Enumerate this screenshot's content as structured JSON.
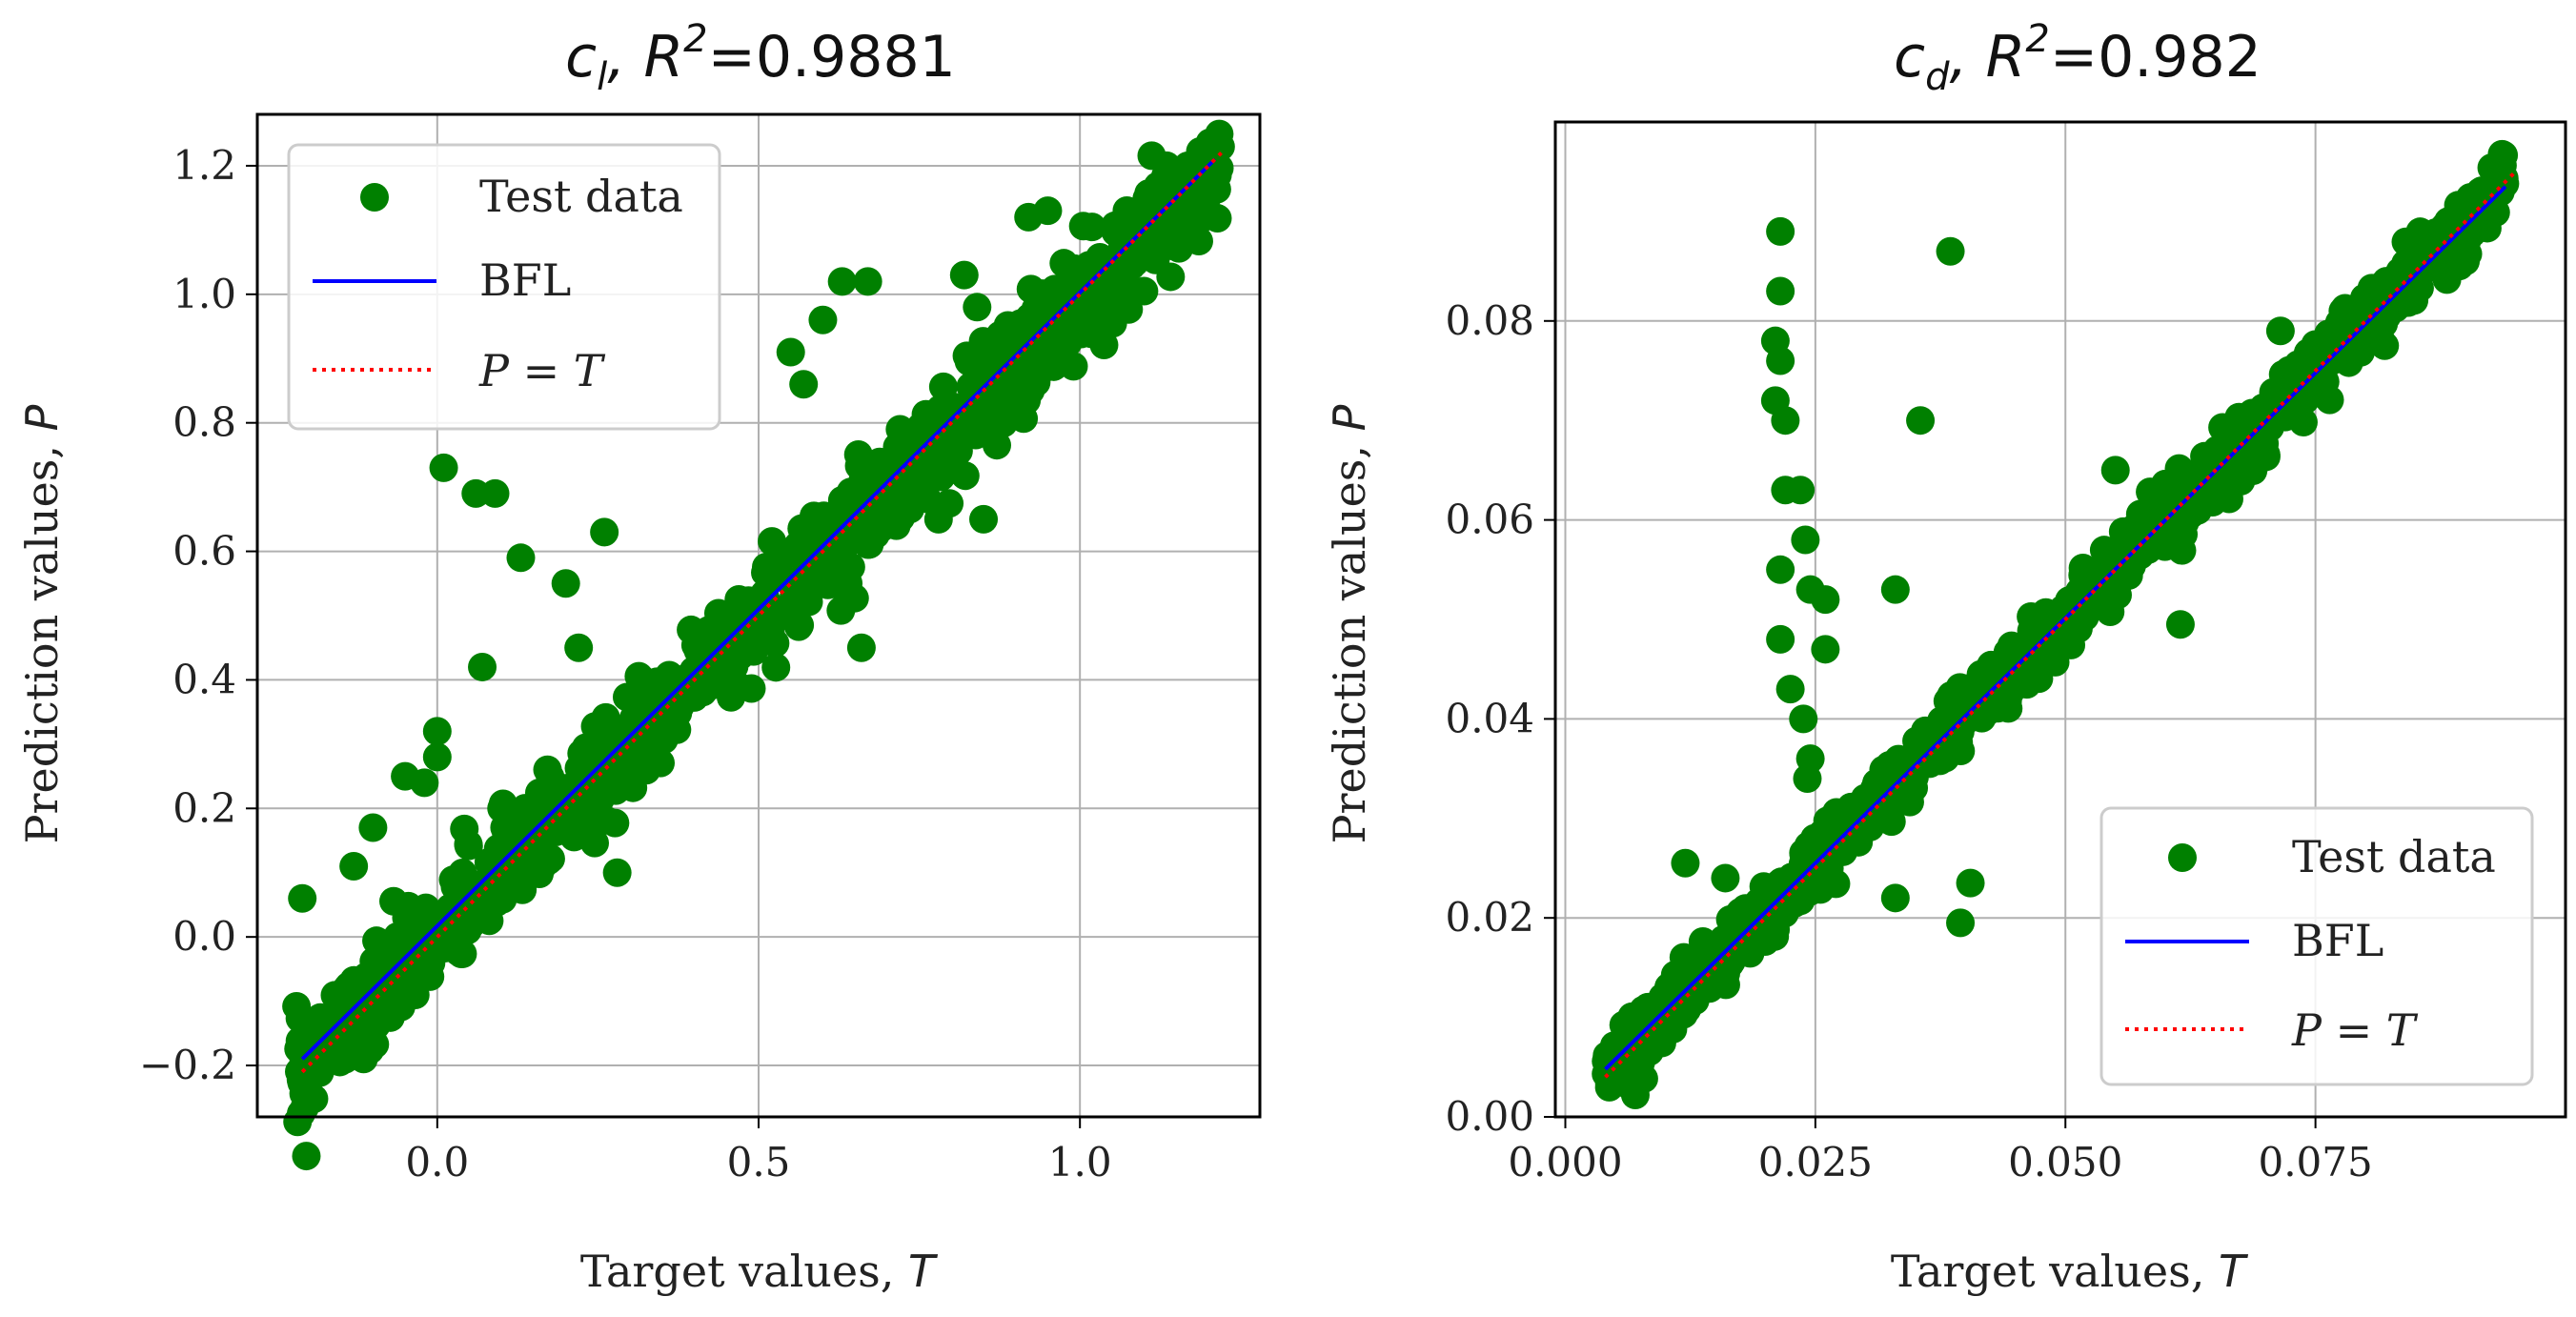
{
  "chart_data": [
    {
      "type": "scatter",
      "title": "c_l, R^2=0.9881",
      "title_parts": {
        "symbol_base": "c",
        "symbol_sub": "l",
        "r": ", R",
        "sup": "2",
        "value": "=0.9881"
      },
      "xlabel": "Target values, ",
      "xlabel_var": "T",
      "ylabel": "Prediction values, ",
      "ylabel_var": "P",
      "xlim": [
        -0.28,
        1.28
      ],
      "ylim": [
        -0.28,
        1.28
      ],
      "xticks": [
        0.0,
        0.5,
        1.0
      ],
      "xtick_labels": [
        "0.0",
        "0.5",
        "1.0"
      ],
      "yticks": [
        -0.2,
        0.0,
        0.2,
        0.4,
        0.6,
        0.8,
        1.0,
        1.2
      ],
      "ytick_labels": [
        "−0.2",
        "0.0",
        "0.2",
        "0.4",
        "0.6",
        "0.8",
        "1.0",
        "1.2"
      ],
      "grid": true,
      "legend": {
        "location": "upper-left",
        "entries": [
          "Test data",
          "BFL",
          "P = T"
        ]
      },
      "series": [
        {
          "name": "BFL",
          "kind": "line",
          "color": "#0000ff",
          "x": [
            -0.21,
            1.21
          ],
          "y": [
            -0.19,
            1.21
          ]
        },
        {
          "name": "P = T",
          "kind": "dotted-line",
          "color": "#ff0000",
          "x": [
            -0.21,
            1.22
          ],
          "y": [
            -0.21,
            1.22
          ]
        }
      ],
      "scatter": {
        "name": "Test data",
        "color": "#008000",
        "trend": {
          "x_min": -0.22,
          "x_max": 1.22,
          "slope": 0.99,
          "intercept": 0.0,
          "spread": 0.04,
          "count": 900
        },
        "outliers": [
          [
            -0.21,
            0.06
          ],
          [
            -0.13,
            0.11
          ],
          [
            -0.1,
            0.17
          ],
          [
            -0.05,
            0.25
          ],
          [
            -0.02,
            0.24
          ],
          [
            0.0,
            0.28
          ],
          [
            0.0,
            0.32
          ],
          [
            0.01,
            0.73
          ],
          [
            0.06,
            0.69
          ],
          [
            0.09,
            0.69
          ],
          [
            0.07,
            0.42
          ],
          [
            0.13,
            0.59
          ],
          [
            0.2,
            0.55
          ],
          [
            0.26,
            0.63
          ],
          [
            0.28,
            0.1
          ],
          [
            0.6,
            0.55
          ],
          [
            0.66,
            0.45
          ],
          [
            0.78,
            0.65
          ],
          [
            0.85,
            0.65
          ],
          [
            0.6,
            0.96
          ],
          [
            0.63,
            1.02
          ],
          [
            0.67,
            1.02
          ],
          [
            0.82,
            1.03
          ],
          [
            0.84,
            0.98
          ],
          [
            0.95,
            1.13
          ],
          [
            0.92,
            1.12
          ],
          [
            0.55,
            0.91
          ],
          [
            0.57,
            0.86
          ],
          [
            0.1,
            0.2
          ],
          [
            0.22,
            0.45
          ]
        ]
      }
    },
    {
      "type": "scatter",
      "title": "c_d, R^2=0.982",
      "title_parts": {
        "symbol_base": "c",
        "symbol_sub": "d",
        "r": ", R",
        "sup": "2",
        "value": "=0.982"
      },
      "xlabel": "Target values, ",
      "xlabel_var": "T",
      "ylabel": "Prediction values, ",
      "ylabel_var": "P",
      "xlim": [
        -0.001,
        0.1
      ],
      "ylim": [
        0.0,
        0.1
      ],
      "xticks": [
        0.0,
        0.025,
        0.05,
        0.075
      ],
      "xtick_labels": [
        "0.000",
        "0.025",
        "0.050",
        "0.075"
      ],
      "yticks": [
        0.0,
        0.02,
        0.04,
        0.06,
        0.08
      ],
      "ytick_labels": [
        "0.00",
        "0.02",
        "0.04",
        "0.06",
        "0.08"
      ],
      "grid": true,
      "legend": {
        "location": "lower-right",
        "entries": [
          "Test data",
          "BFL",
          "P = T"
        ]
      },
      "series": [
        {
          "name": "BFL",
          "kind": "line",
          "color": "#0000ff",
          "x": [
            0.004,
            0.094
          ],
          "y": [
            0.0048,
            0.0935
          ]
        },
        {
          "name": "P = T",
          "kind": "dotted-line",
          "color": "#ff0000",
          "x": [
            0.004,
            0.095
          ],
          "y": [
            0.004,
            0.095
          ]
        }
      ],
      "scatter": {
        "name": "Test data",
        "color": "#008000",
        "trend": {
          "x_min": 0.004,
          "x_max": 0.094,
          "slope": 0.99,
          "intercept": 0.0006,
          "spread": 0.0016,
          "count": 900
        },
        "outliers": [
          [
            0.0215,
            0.089
          ],
          [
            0.0215,
            0.083
          ],
          [
            0.021,
            0.078
          ],
          [
            0.0215,
            0.076
          ],
          [
            0.021,
            0.072
          ],
          [
            0.022,
            0.07
          ],
          [
            0.022,
            0.063
          ],
          [
            0.0235,
            0.063
          ],
          [
            0.024,
            0.058
          ],
          [
            0.0215,
            0.055
          ],
          [
            0.0245,
            0.053
          ],
          [
            0.026,
            0.052
          ],
          [
            0.0215,
            0.048
          ],
          [
            0.026,
            0.047
          ],
          [
            0.0225,
            0.043
          ],
          [
            0.0238,
            0.04
          ],
          [
            0.0245,
            0.036
          ],
          [
            0.0242,
            0.034
          ],
          [
            0.0385,
            0.087
          ],
          [
            0.0355,
            0.07
          ],
          [
            0.033,
            0.053
          ],
          [
            0.0405,
            0.0235
          ],
          [
            0.0395,
            0.0195
          ],
          [
            0.033,
            0.022
          ],
          [
            0.0615,
            0.0495
          ],
          [
            0.055,
            0.065
          ],
          [
            0.0715,
            0.079
          ],
          [
            0.09,
            0.086
          ],
          [
            0.012,
            0.0255
          ],
          [
            0.016,
            0.024
          ]
        ]
      }
    }
  ]
}
